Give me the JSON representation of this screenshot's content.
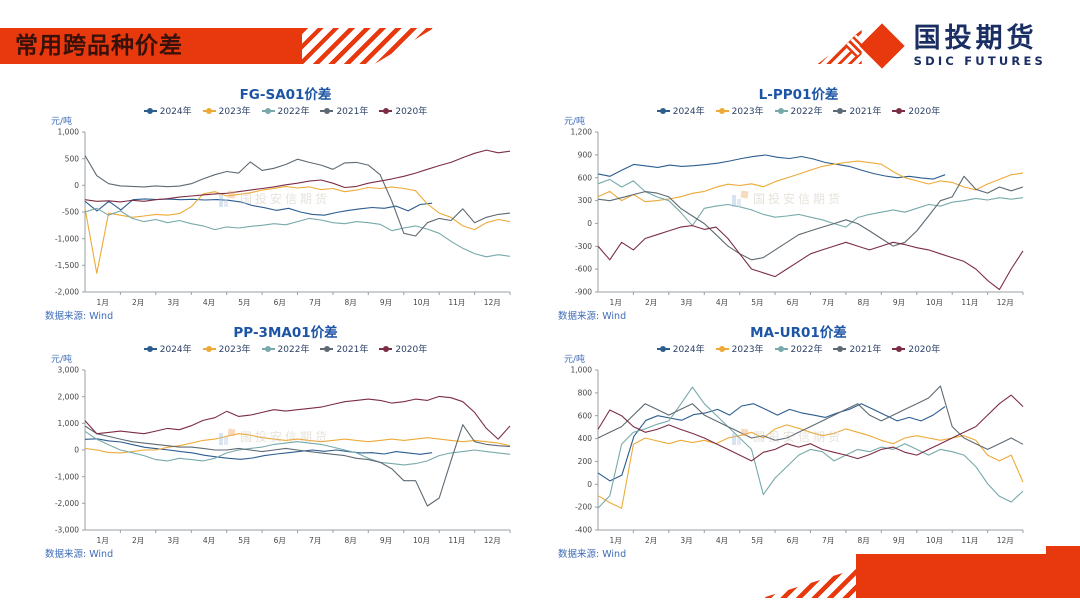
{
  "header": {
    "title": "常用跨品种价差",
    "banner_color": "#e8380d"
  },
  "logo": {
    "company_cn": "国投期货",
    "company_en": "SDIC FUTURES",
    "navy": "#1b2e63",
    "red": "#e8380d"
  },
  "watermark": {
    "text": "国投安信期货"
  },
  "source": {
    "label": "数据来源: Wind"
  },
  "chart_data": [
    {
      "type": "line",
      "title": "FG-SA01价差",
      "ylabel": "元/吨",
      "ylim": [
        -2000,
        1000
      ],
      "yticks": [
        1000,
        500,
        0,
        -500,
        -1000,
        -1500,
        -2000
      ],
      "x_categories": [
        "1月",
        "2月",
        "3月",
        "4月",
        "5月",
        "6月",
        "7月",
        "8月",
        "9月",
        "10月",
        "11月",
        "12月"
      ],
      "legend_position": "top",
      "grid": false,
      "series": [
        {
          "name": "2024年",
          "color": "#2c5d8f",
          "x_end": 9.8,
          "values": [
            -300,
            -480,
            -300,
            -460,
            -270,
            -255,
            -265,
            -258,
            -270,
            -262,
            -275,
            -268,
            -280,
            -310,
            -380,
            -420,
            -470,
            -430,
            -500,
            -545,
            -560,
            -510,
            -470,
            -440,
            -415,
            -430,
            -390,
            -480,
            -360,
            -335
          ]
        },
        {
          "name": "2023年",
          "color": "#edaa38",
          "x_end": 12,
          "values": [
            -430,
            -1650,
            -520,
            -560,
            -600,
            -575,
            -545,
            -560,
            -530,
            -400,
            -160,
            -120,
            -200,
            -170,
            -140,
            -90,
            -60,
            -20,
            -50,
            -30,
            -80,
            -60,
            -120,
            -90,
            -40,
            -60,
            -30,
            -60,
            -100,
            -350,
            -520,
            -600,
            -760,
            -830,
            -700,
            -640,
            -680
          ]
        },
        {
          "name": "2022年",
          "color": "#77a9aa",
          "x_end": 12,
          "values": [
            -500,
            -430,
            -560,
            -480,
            -620,
            -680,
            -640,
            -700,
            -660,
            -720,
            -760,
            -830,
            -780,
            -800,
            -770,
            -750,
            -720,
            -740,
            -680,
            -620,
            -650,
            -700,
            -720,
            -680,
            -700,
            -730,
            -850,
            -800,
            -760,
            -820,
            -900,
            -1050,
            -1180,
            -1280,
            -1340,
            -1300,
            -1330
          ]
        },
        {
          "name": "2021年",
          "color": "#5e6a73",
          "x_end": 12,
          "values": [
            560,
            180,
            30,
            -10,
            -20,
            -30,
            -10,
            -25,
            -15,
            30,
            120,
            200,
            260,
            230,
            440,
            280,
            320,
            390,
            490,
            430,
            380,
            300,
            420,
            430,
            380,
            200,
            -300,
            -900,
            -950,
            -700,
            -620,
            -660,
            -440,
            -700,
            -600,
            -545,
            -520
          ]
        },
        {
          "name": "2020年",
          "color": "#7c2d45",
          "x_end": 12,
          "values": [
            -270,
            -300,
            -290,
            -310,
            -280,
            -300,
            -270,
            -250,
            -220,
            -200,
            -180,
            -160,
            -150,
            -120,
            -90,
            -60,
            -30,
            10,
            40,
            80,
            100,
            40,
            -40,
            -20,
            40,
            80,
            120,
            170,
            230,
            300,
            370,
            430,
            520,
            600,
            660,
            610,
            640
          ]
        }
      ]
    },
    {
      "type": "line",
      "title": "L-PP01价差",
      "ylabel": "元/吨",
      "ylim": [
        -900,
        1200
      ],
      "yticks": [
        1200,
        900,
        600,
        300,
        0,
        -300,
        -600,
        -900
      ],
      "x_categories": [
        "1月",
        "2月",
        "3月",
        "4月",
        "5月",
        "6月",
        "7月",
        "8月",
        "9月",
        "10月",
        "11月",
        "12月"
      ],
      "legend_position": "top",
      "grid": false,
      "series": [
        {
          "name": "2024年",
          "color": "#2c5d8f",
          "x_end": 9.8,
          "values": [
            650,
            618,
            700,
            775,
            755,
            735,
            765,
            748,
            758,
            772,
            790,
            820,
            852,
            880,
            898,
            868,
            852,
            878,
            845,
            800,
            775,
            748,
            700,
            655,
            622,
            600,
            618,
            598,
            582,
            640
          ]
        },
        {
          "name": "2023年",
          "color": "#edaa38",
          "x_end": 12,
          "values": [
            350,
            420,
            300,
            380,
            285,
            300,
            320,
            350,
            395,
            420,
            475,
            515,
            498,
            520,
            482,
            548,
            598,
            648,
            700,
            748,
            778,
            800,
            818,
            798,
            778,
            680,
            600,
            558,
            518,
            558,
            538,
            478,
            442,
            518,
            578,
            640,
            660
          ]
        },
        {
          "name": "2022年",
          "color": "#77a9aa",
          "x_end": 12,
          "values": [
            520,
            578,
            478,
            558,
            418,
            348,
            298,
            148,
            -30,
            198,
            228,
            248,
            218,
            178,
            118,
            82,
            98,
            118,
            82,
            48,
            -2,
            -48,
            78,
            118,
            148,
            178,
            148,
            198,
            248,
            228,
            278,
            298,
            328,
            308,
            338,
            318,
            338
          ]
        },
        {
          "name": "2021年",
          "color": "#5e6a73",
          "x_end": 12,
          "values": [
            318,
            298,
            338,
            378,
            418,
            398,
            348,
            198,
            98,
            -2,
            -148,
            -298,
            -398,
            -478,
            -448,
            -348,
            -248,
            -148,
            -98,
            -48,
            -2,
            48,
            -2,
            -98,
            -198,
            -298,
            -248,
            -98,
            98,
            298,
            348,
            618,
            448,
            398,
            478,
            428,
            478
          ]
        },
        {
          "name": "2020年",
          "color": "#7c2d45",
          "x_end": 12,
          "values": [
            -298,
            -478,
            -248,
            -348,
            -198,
            -148,
            -98,
            -48,
            -28,
            -78,
            -48,
            -198,
            -398,
            -598,
            -648,
            -698,
            -598,
            -498,
            -398,
            -348,
            -298,
            -248,
            -298,
            -348,
            -298,
            -248,
            -278,
            -318,
            -348,
            -398,
            -448,
            -498,
            -598,
            -748,
            -868,
            -598,
            -360
          ]
        }
      ]
    },
    {
      "type": "line",
      "title": "PP-3MA01价差",
      "ylabel": "元/吨",
      "ylim": [
        -3000,
        3000
      ],
      "yticks": [
        3000,
        2000,
        1000,
        0,
        -1000,
        -2000,
        -3000
      ],
      "x_categories": [
        "1月",
        "2月",
        "3月",
        "4月",
        "5月",
        "6月",
        "7月",
        "8月",
        "9月",
        "10月",
        "11月",
        "12月"
      ],
      "legend_position": "top",
      "grid": false,
      "series": [
        {
          "name": "2024年",
          "color": "#2c5d8f",
          "x_end": 9.8,
          "values": [
            400,
            420,
            340,
            300,
            200,
            100,
            50,
            0,
            -60,
            -110,
            -200,
            -260,
            -310,
            -350,
            -300,
            -210,
            -150,
            -100,
            -50,
            0,
            -50,
            0,
            -60,
            -110,
            -100,
            -150,
            -60,
            -110,
            -160,
            -100
          ]
        },
        {
          "name": "2023年",
          "color": "#edaa38",
          "x_end": 12,
          "values": [
            60,
            0,
            -90,
            -110,
            -60,
            0,
            0,
            100,
            160,
            260,
            360,
            410,
            510,
            610,
            560,
            460,
            410,
            360,
            410,
            360,
            310,
            360,
            410,
            360,
            310,
            360,
            410,
            360,
            410,
            460,
            410,
            360,
            310,
            360,
            310,
            260,
            160
          ]
        },
        {
          "name": "2022年",
          "color": "#77a9aa",
          "x_end": 12,
          "values": [
            700,
            400,
            200,
            0,
            -100,
            -210,
            -360,
            -410,
            -310,
            -360,
            -410,
            -310,
            -110,
            0,
            60,
            110,
            210,
            260,
            310,
            260,
            210,
            110,
            0,
            -110,
            -310,
            -460,
            -510,
            -560,
            -510,
            -410,
            -210,
            -110,
            -60,
            0,
            -60,
            -110,
            -160
          ]
        },
        {
          "name": "2021年",
          "color": "#5e6a73",
          "x_end": 12,
          "values": [
            900,
            610,
            510,
            410,
            310,
            260,
            210,
            160,
            110,
            110,
            60,
            0,
            0,
            60,
            0,
            -60,
            0,
            60,
            0,
            -60,
            -110,
            -160,
            -210,
            -310,
            -360,
            -460,
            -710,
            -1150,
            -1150,
            -2100,
            -1800,
            -400,
            950,
            310,
            210,
            160,
            130
          ]
        },
        {
          "name": "2020年",
          "color": "#7c2d45",
          "x_end": 12,
          "values": [
            1100,
            610,
            660,
            710,
            660,
            610,
            710,
            810,
            760,
            910,
            1110,
            1210,
            1450,
            1260,
            1310,
            1410,
            1510,
            1460,
            1510,
            1560,
            1610,
            1710,
            1810,
            1860,
            1910,
            1860,
            1760,
            1810,
            1910,
            1860,
            2010,
            1960,
            1810,
            1410,
            810,
            410,
            900
          ]
        }
      ]
    },
    {
      "type": "line",
      "title": "MA-UR01价差",
      "ylabel": "元/吨",
      "ylim": [
        -400,
        1000
      ],
      "yticks": [
        1000,
        800,
        600,
        400,
        200,
        0,
        -200,
        -400
      ],
      "x_categories": [
        "1月",
        "2月",
        "3月",
        "4月",
        "5月",
        "6月",
        "7月",
        "8月",
        "9月",
        "10月",
        "11月",
        "12月"
      ],
      "legend_position": "top",
      "grid": false,
      "series": [
        {
          "name": "2024年",
          "color": "#2c5d8f",
          "x_end": 9.8,
          "values": [
            100,
            30,
            80,
            420,
            560,
            600,
            580,
            560,
            610,
            625,
            655,
            605,
            685,
            705,
            655,
            605,
            655,
            625,
            605,
            585,
            625,
            655,
            705,
            655,
            605,
            555,
            585,
            555,
            605,
            680
          ]
        },
        {
          "name": "2023年",
          "color": "#edaa38",
          "x_end": 12,
          "values": [
            -100,
            -160,
            -210,
            350,
            405,
            380,
            355,
            385,
            365,
            385,
            355,
            405,
            425,
            455,
            405,
            485,
            520,
            490,
            455,
            425,
            445,
            485,
            455,
            425,
            385,
            355,
            405,
            425,
            405,
            385,
            405,
            425,
            385,
            255,
            205,
            255,
            20
          ]
        },
        {
          "name": "2022年",
          "color": "#77a9aa",
          "x_end": 12,
          "values": [
            -210,
            -100,
            350,
            455,
            485,
            525,
            555,
            700,
            850,
            705,
            605,
            505,
            405,
            305,
            -90,
            55,
            155,
            255,
            305,
            285,
            205,
            255,
            305,
            285,
            325,
            305,
            355,
            305,
            255,
            305,
            285,
            255,
            155,
            5,
            -105,
            -155,
            -60
          ]
        },
        {
          "name": "2021年",
          "color": "#5e6a73",
          "x_end": 12,
          "values": [
            405,
            455,
            505,
            605,
            705,
            655,
            605,
            655,
            705,
            605,
            555,
            505,
            455,
            405,
            425,
            385,
            405,
            455,
            505,
            555,
            605,
            655,
            705,
            605,
            555,
            605,
            655,
            705,
            755,
            860,
            505,
            405,
            355,
            305,
            355,
            405,
            350
          ]
        },
        {
          "name": "2020年",
          "color": "#7c2d45",
          "x_end": 12,
          "values": [
            480,
            650,
            600,
            505,
            455,
            480,
            520,
            480,
            445,
            405,
            355,
            305,
            255,
            205,
            280,
            305,
            355,
            325,
            355,
            305,
            280,
            255,
            225,
            260,
            305,
            325,
            280,
            255,
            305,
            355,
            405,
            455,
            505,
            605,
            705,
            780,
            680
          ]
        }
      ]
    }
  ]
}
